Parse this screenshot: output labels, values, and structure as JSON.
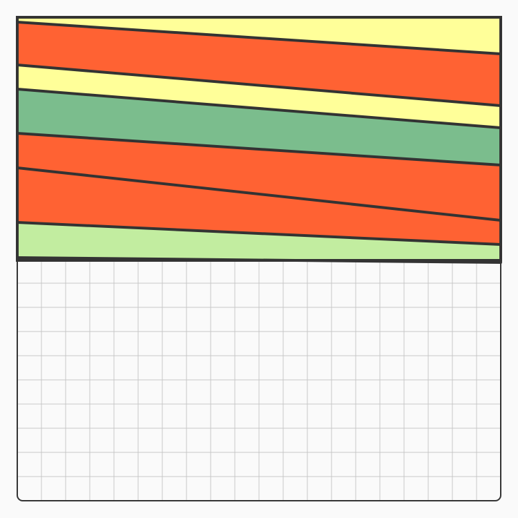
{
  "colors": {
    "background": "#fafafa",
    "grid_line": "#c8c8c8",
    "grid_border": "#333333",
    "outline": "#333333",
    "pale_yellow": "#ffff99",
    "orange_red": "#ff6233",
    "sage_green": "#7bbd8d",
    "light_green": "#c2eda0"
  },
  "grid": {
    "columns": 20,
    "rows": 20
  },
  "layers": [
    {
      "id": "layer-1",
      "color_key": "pale_yellow"
    },
    {
      "id": "layer-2",
      "color_key": "orange_red"
    },
    {
      "id": "layer-3",
      "color_key": "pale_yellow"
    },
    {
      "id": "layer-4",
      "color_key": "sage_green"
    },
    {
      "id": "layer-5",
      "color_key": "orange_red"
    },
    {
      "id": "layer-6",
      "color_key": "orange_red"
    },
    {
      "id": "layer-7",
      "color_key": "light_green"
    }
  ]
}
